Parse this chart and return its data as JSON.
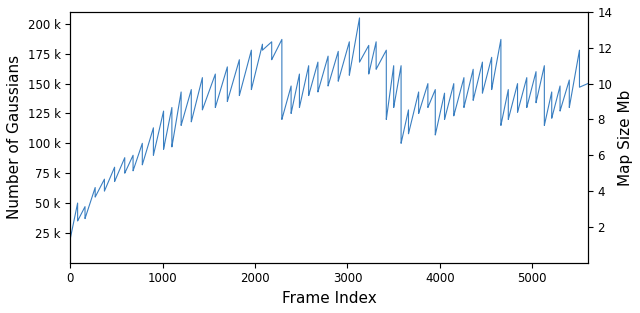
{
  "xlabel": "Frame Index",
  "ylabel_left": "Number of Gaussians",
  "ylabel_right": "Map Size Mb",
  "line_color": "#3a7fc1",
  "line_width": 0.8,
  "xlim": [
    0,
    5600
  ],
  "ylim_left": [
    0,
    210000
  ],
  "ylim_right": [
    0,
    14
  ],
  "yticks_left": [
    25000,
    50000,
    75000,
    100000,
    125000,
    150000,
    175000,
    200000
  ],
  "ytick_labels_left": [
    "25 k",
    "50 k",
    "75 k",
    "100 k",
    "125 k",
    "150 k",
    "175 k",
    "200 k"
  ],
  "yticks_right": [
    2,
    4,
    6,
    8,
    10,
    12,
    14
  ],
  "xticks": [
    0,
    1000,
    2000,
    3000,
    4000,
    5000
  ],
  "figsize": [
    6.4,
    3.13
  ],
  "dpi": 100,
  "background_color": "#ffffff",
  "sawtooth_segments": [
    [
      0,
      20000,
      80,
      50000,
      35000
    ],
    [
      80,
      35000,
      160,
      47000,
      37000
    ],
    [
      160,
      37000,
      270,
      63000,
      55000
    ],
    [
      270,
      55000,
      370,
      70000,
      60000
    ],
    [
      370,
      60000,
      480,
      80000,
      68000
    ],
    [
      480,
      68000,
      590,
      88000,
      75000
    ],
    [
      590,
      75000,
      680,
      90000,
      77000
    ],
    [
      680,
      77000,
      780,
      100000,
      82000
    ],
    [
      780,
      82000,
      900,
      113000,
      90000
    ],
    [
      900,
      90000,
      1010,
      127000,
      95000
    ],
    [
      1010,
      95000,
      1100,
      130000,
      97000
    ],
    [
      1100,
      97000,
      1200,
      143000,
      115000
    ],
    [
      1200,
      115000,
      1310,
      145000,
      118000
    ],
    [
      1310,
      118000,
      1430,
      155000,
      128000
    ],
    [
      1430,
      128000,
      1570,
      158000,
      130000
    ],
    [
      1570,
      130000,
      1700,
      164000,
      135000
    ],
    [
      1700,
      135000,
      1830,
      170000,
      140000
    ],
    [
      1830,
      140000,
      1960,
      178000,
      145000
    ],
    [
      1960,
      145000,
      2080,
      183000,
      178000
    ],
    [
      2080,
      178000,
      2180,
      185000,
      170000
    ],
    [
      2180,
      170000,
      2290,
      187000,
      120000
    ],
    [
      2290,
      120000,
      2390,
      148000,
      125000
    ],
    [
      2390,
      125000,
      2480,
      158000,
      130000
    ],
    [
      2480,
      130000,
      2580,
      165000,
      140000
    ],
    [
      2580,
      140000,
      2680,
      168000,
      143000
    ],
    [
      2680,
      143000,
      2790,
      173000,
      148000
    ],
    [
      2790,
      148000,
      2900,
      177000,
      152000
    ],
    [
      2900,
      152000,
      3020,
      185000,
      157000
    ],
    [
      3020,
      157000,
      3130,
      205000,
      168000
    ],
    [
      3130,
      168000,
      3230,
      182000,
      158000
    ],
    [
      3230,
      158000,
      3310,
      185000,
      162000
    ],
    [
      3310,
      162000,
      3420,
      178000,
      120000
    ],
    [
      3420,
      120000,
      3500,
      165000,
      130000
    ],
    [
      3500,
      130000,
      3580,
      165000,
      100000
    ],
    [
      3580,
      100000,
      3660,
      128000,
      108000
    ],
    [
      3660,
      108000,
      3770,
      143000,
      125000
    ],
    [
      3770,
      125000,
      3870,
      150000,
      130000
    ],
    [
      3870,
      130000,
      3950,
      145000,
      107000
    ],
    [
      3950,
      107000,
      4050,
      142000,
      120000
    ],
    [
      4050,
      120000,
      4150,
      150000,
      123000
    ],
    [
      4150,
      123000,
      4260,
      155000,
      130000
    ],
    [
      4260,
      130000,
      4360,
      162000,
      136000
    ],
    [
      4360,
      136000,
      4460,
      168000,
      142000
    ],
    [
      4460,
      142000,
      4560,
      172000,
      145000
    ],
    [
      4560,
      145000,
      4660,
      187000,
      115000
    ],
    [
      4660,
      115000,
      4740,
      145000,
      120000
    ],
    [
      4740,
      120000,
      4840,
      150000,
      126000
    ],
    [
      4840,
      126000,
      4940,
      155000,
      130000
    ],
    [
      4940,
      130000,
      5040,
      160000,
      134000
    ],
    [
      5040,
      134000,
      5130,
      165000,
      115000
    ],
    [
      5130,
      115000,
      5210,
      143000,
      121000
    ],
    [
      5210,
      121000,
      5300,
      148000,
      127000
    ],
    [
      5300,
      127000,
      5400,
      153000,
      130000
    ],
    [
      5400,
      130000,
      5510,
      178000,
      147000
    ],
    [
      5510,
      147000,
      5600,
      150000,
      148000
    ]
  ]
}
